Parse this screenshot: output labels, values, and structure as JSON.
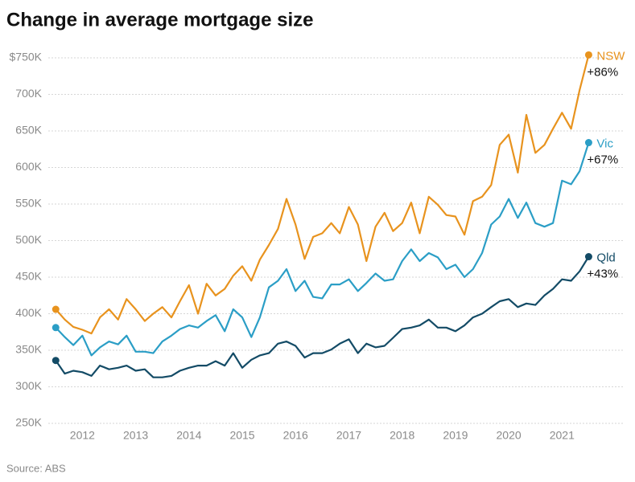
{
  "chart_data": {
    "type": "line",
    "title": "Change in average mortgage size",
    "source": "Source: ABS",
    "x": [
      2011.5,
      2011.67,
      2011.83,
      2012,
      2012.17,
      2012.33,
      2012.5,
      2012.67,
      2012.83,
      2013,
      2013.17,
      2013.33,
      2013.5,
      2013.67,
      2013.83,
      2014,
      2014.17,
      2014.33,
      2014.5,
      2014.67,
      2014.83,
      2015,
      2015.17,
      2015.33,
      2015.5,
      2015.67,
      2015.83,
      2016,
      2016.17,
      2016.33,
      2016.5,
      2016.67,
      2016.83,
      2017,
      2017.17,
      2017.33,
      2017.5,
      2017.67,
      2017.83,
      2018,
      2018.17,
      2018.33,
      2018.5,
      2018.67,
      2018.83,
      2019,
      2019.17,
      2019.33,
      2019.5,
      2019.67,
      2019.83,
      2020,
      2020.17,
      2020.33,
      2020.5,
      2020.67,
      2020.83,
      2021,
      2021.17,
      2021.33,
      2021.5
    ],
    "series": [
      {
        "name": "NSW",
        "change": "+86%",
        "color": "#e8931e",
        "values": [
          406000,
          392000,
          382000,
          378000,
          373000,
          395000,
          406000,
          392000,
          420000,
          406000,
          390000,
          400000,
          409000,
          395000,
          417000,
          439000,
          400000,
          441000,
          425000,
          434000,
          452000,
          465000,
          445000,
          474000,
          494000,
          516000,
          557000,
          522000,
          475000,
          505000,
          510000,
          524000,
          510000,
          546000,
          522000,
          472000,
          519000,
          538000,
          513000,
          524000,
          552000,
          510000,
          560000,
          549000,
          535000,
          533000,
          508000,
          554000,
          560000,
          576000,
          631000,
          645000,
          593000,
          672000,
          620000,
          631000,
          653000,
          675000,
          653000,
          706000,
          754000
        ]
      },
      {
        "name": "Vic",
        "change": "+67%",
        "color": "#2b9ec6",
        "values": [
          381000,
          368000,
          357000,
          370000,
          343000,
          354000,
          362000,
          358000,
          370000,
          348000,
          348000,
          346000,
          362000,
          370000,
          379000,
          384000,
          381000,
          390000,
          398000,
          376000,
          406000,
          395000,
          368000,
          395000,
          436000,
          445000,
          461000,
          431000,
          445000,
          423000,
          421000,
          440000,
          440000,
          447000,
          431000,
          442000,
          455000,
          445000,
          447000,
          472000,
          488000,
          472000,
          483000,
          477000,
          461000,
          467000,
          450000,
          461000,
          483000,
          522000,
          533000,
          557000,
          531000,
          552000,
          524000,
          519000,
          524000,
          582000,
          577000,
          595000,
          634000
        ]
      },
      {
        "name": "Qld",
        "change": "+43%",
        "color": "#134b66",
        "values": [
          336000,
          318000,
          322000,
          320000,
          315000,
          329000,
          324000,
          326000,
          329000,
          322000,
          324000,
          313000,
          313000,
          315000,
          322000,
          326000,
          329000,
          329000,
          335000,
          329000,
          346000,
          326000,
          337000,
          343000,
          346000,
          359000,
          362000,
          356000,
          340000,
          346000,
          346000,
          351000,
          359000,
          365000,
          346000,
          359000,
          354000,
          356000,
          367000,
          379000,
          381000,
          384000,
          392000,
          381000,
          381000,
          376000,
          384000,
          395000,
          400000,
          409000,
          417000,
          420000,
          409000,
          414000,
          412000,
          425000,
          434000,
          447000,
          445000,
          458000,
          478000
        ]
      }
    ],
    "xlim": [
      2011.36,
      2021.72
    ],
    "xticks": [
      2012,
      2013,
      2014,
      2015,
      2016,
      2017,
      2018,
      2019,
      2020,
      2021
    ],
    "ylim": [
      250000,
      750000
    ],
    "yticks": [
      {
        "value": 250000,
        "label": "250K"
      },
      {
        "value": 300000,
        "label": "300K"
      },
      {
        "value": 350000,
        "label": "350K"
      },
      {
        "value": 400000,
        "label": "400K"
      },
      {
        "value": 450000,
        "label": "450K"
      },
      {
        "value": 500000,
        "label": "500K"
      },
      {
        "value": 550000,
        "label": "550K"
      },
      {
        "value": 600000,
        "label": "600K"
      },
      {
        "value": 650000,
        "label": "650K"
      },
      {
        "value": 700000,
        "label": "700K"
      },
      {
        "value": 750000,
        "label": "$750K"
      }
    ],
    "grid": true
  }
}
